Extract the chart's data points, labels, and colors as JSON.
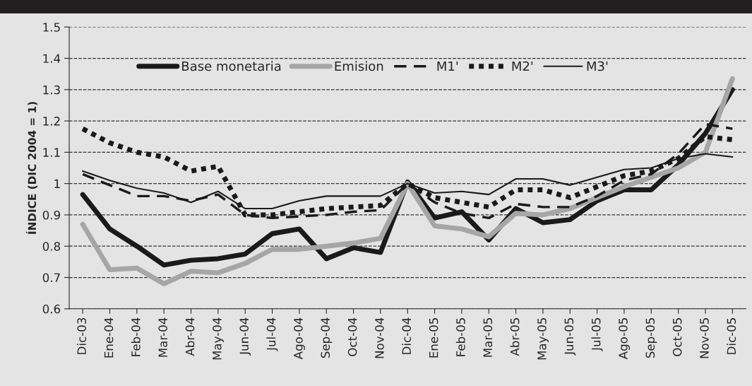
{
  "chart_data": {
    "type": "line",
    "ylabel": "ÍNDICE (DIC 2004 = 1)",
    "categories": [
      "Dic-03",
      "Ene-04",
      "Feb-04",
      "Mar-04",
      "Abr-04",
      "May-04",
      "Jun-04",
      "Jul-04",
      "Ago-04",
      "Sep-04",
      "Oct-04",
      "Nov-04",
      "Dic-04",
      "Ene-05",
      "Feb-05",
      "Mar-05",
      "Abr-05",
      "May-05",
      "Jun-05",
      "Jul-05",
      "Ago-05",
      "Sep-05",
      "Oct-05",
      "Nov-05",
      "Dic-05"
    ],
    "series": [
      {
        "name": "Base monetaria",
        "color": "#1a1a1a",
        "line_style": "solid",
        "values": [
          0.965,
          0.855,
          0.8,
          0.74,
          0.755,
          0.76,
          0.775,
          0.84,
          0.855,
          0.76,
          0.795,
          0.78,
          1.005,
          0.89,
          0.91,
          0.82,
          0.92,
          0.875,
          0.885,
          0.945,
          0.98,
          0.98,
          1.06,
          1.16,
          1.3
        ]
      },
      {
        "name": "Emision",
        "color": "#a6a6a8",
        "line_style": "solid",
        "values": [
          0.87,
          0.725,
          0.73,
          0.68,
          0.72,
          0.715,
          0.745,
          0.79,
          0.79,
          0.8,
          0.81,
          0.825,
          1.0,
          0.865,
          0.855,
          0.83,
          0.905,
          0.9,
          0.92,
          0.955,
          0.99,
          1.02,
          1.05,
          1.1,
          1.335
        ]
      },
      {
        "name": "M1'",
        "color": "#1a1a1a",
        "line_style": "dashed",
        "values": [
          1.03,
          0.995,
          0.96,
          0.96,
          0.945,
          0.965,
          0.9,
          0.89,
          0.895,
          0.9,
          0.91,
          0.915,
          1.0,
          0.94,
          0.905,
          0.89,
          0.935,
          0.925,
          0.925,
          0.96,
          1.01,
          1.03,
          1.095,
          1.19,
          1.175
        ]
      },
      {
        "name": "M2'",
        "color": "#1a1a1a",
        "line_style": "dotted",
        "values": [
          1.175,
          1.13,
          1.1,
          1.085,
          1.04,
          1.055,
          0.9,
          0.9,
          0.91,
          0.92,
          0.925,
          0.93,
          1.0,
          0.955,
          0.94,
          0.925,
          0.98,
          0.98,
          0.955,
          0.99,
          1.025,
          1.04,
          1.08,
          1.15,
          1.14
        ]
      },
      {
        "name": "M3'",
        "color": "#1a1a1a",
        "line_style": "solid",
        "values": [
          1.04,
          1.01,
          0.985,
          0.97,
          0.94,
          0.975,
          0.92,
          0.92,
          0.945,
          0.96,
          0.96,
          0.96,
          1.0,
          0.97,
          0.975,
          0.965,
          1.015,
          1.015,
          0.995,
          1.02,
          1.045,
          1.05,
          1.08,
          1.095,
          1.085
        ]
      }
    ],
    "ylim": [
      0.6,
      1.5
    ],
    "yticks": [
      0.6,
      0.7,
      0.8,
      0.9,
      1,
      1.1,
      1.2,
      1.3,
      1.4,
      1.5
    ],
    "grid": "y",
    "legend": "top"
  }
}
